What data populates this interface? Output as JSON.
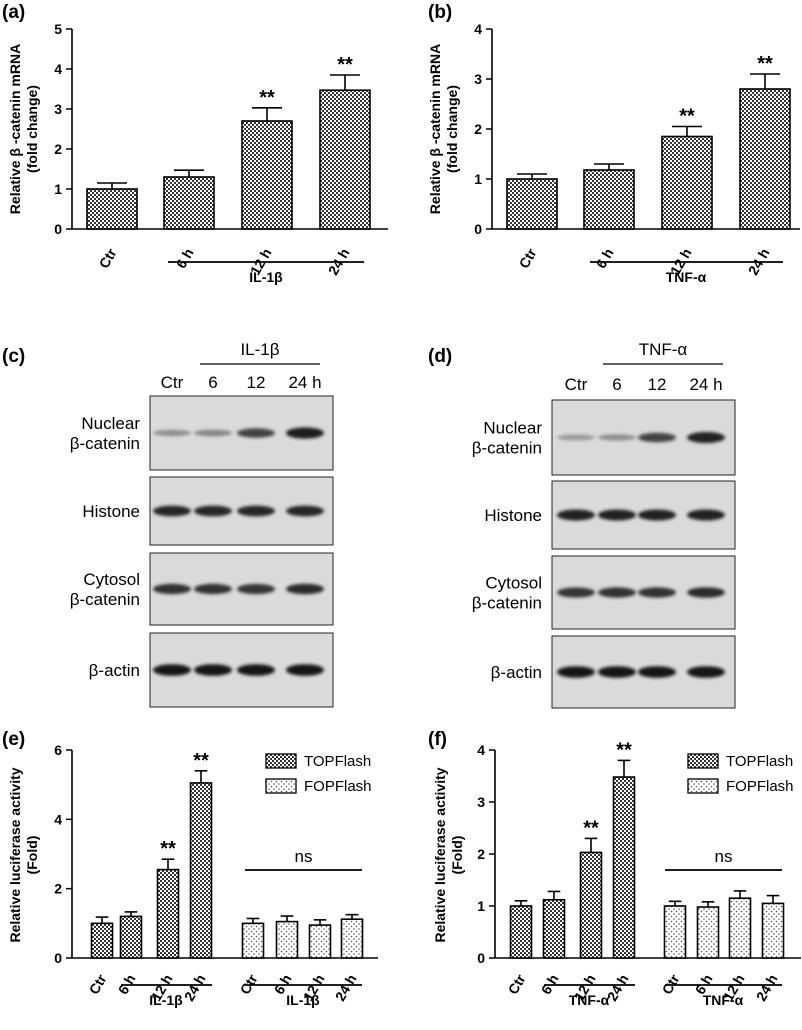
{
  "panels": {
    "a": "(a)",
    "b": "(b)",
    "c": "(c)",
    "d": "(d)",
    "e": "(e)",
    "f": "(f)"
  },
  "colors": {
    "bar_fill": "#6b6b6b",
    "axis": "#000000",
    "blot_bg": "#d9d9d9",
    "band": "#1a1a1a"
  },
  "chart_data": [
    {
      "id": "a",
      "type": "bar",
      "categories": [
        "Ctr",
        "6 h",
        "12 h",
        "24 h"
      ],
      "values": [
        1.0,
        1.3,
        2.7,
        3.47
      ],
      "errors": [
        0.15,
        0.17,
        0.33,
        0.38
      ],
      "significance": [
        "",
        "",
        "**",
        "**"
      ],
      "ylabel": "Relative β -catenin mRNA (fold change)",
      "ylim": [
        0,
        5
      ],
      "yticks": [
        0,
        1,
        2,
        3,
        4,
        5
      ],
      "group_label": "IL-1β"
    },
    {
      "id": "b",
      "type": "bar",
      "categories": [
        "Ctr",
        "6 h",
        "12 h",
        "24 h"
      ],
      "values": [
        1.0,
        1.18,
        1.85,
        2.8
      ],
      "errors": [
        0.1,
        0.12,
        0.2,
        0.3
      ],
      "significance": [
        "",
        "",
        "**",
        "**"
      ],
      "ylabel": "Relative β -catenin mRNA (fold change)",
      "ylim": [
        0,
        4
      ],
      "yticks": [
        0,
        1,
        2,
        3,
        4
      ],
      "group_label": "TNF-α"
    },
    {
      "id": "e",
      "type": "bar",
      "categories": [
        "Ctr",
        "6 h",
        "12 h",
        "24 h"
      ],
      "series": [
        {
          "name": "TOPFlash",
          "values": [
            1.0,
            1.2,
            2.55,
            5.05
          ],
          "errors": [
            0.18,
            0.13,
            0.3,
            0.35
          ],
          "significance": [
            "",
            "",
            "**",
            "**"
          ]
        },
        {
          "name": "FOPFlash",
          "values": [
            1.0,
            1.05,
            0.95,
            1.12
          ],
          "errors": [
            0.14,
            0.16,
            0.15,
            0.13
          ],
          "significance": [
            "",
            "",
            "",
            ""
          ]
        }
      ],
      "ylabel": "Relative luciferase activity (Fold)",
      "ylim": [
        0,
        6
      ],
      "yticks": [
        0,
        2,
        4,
        6
      ],
      "group_labels": [
        "IL-1β",
        "IL-1β"
      ],
      "ns_label": "ns",
      "legend": "top-right"
    },
    {
      "id": "f",
      "type": "bar",
      "categories": [
        "Ctr",
        "6 h",
        "12 h",
        "24 h"
      ],
      "series": [
        {
          "name": "TOPFlash",
          "values": [
            1.0,
            1.12,
            2.03,
            3.48
          ],
          "errors": [
            0.1,
            0.16,
            0.27,
            0.32
          ],
          "significance": [
            "",
            "",
            "**",
            "**"
          ]
        },
        {
          "name": "FOPFlash",
          "values": [
            1.0,
            0.98,
            1.15,
            1.05
          ],
          "errors": [
            0.09,
            0.1,
            0.14,
            0.15
          ],
          "significance": [
            "",
            "",
            "",
            ""
          ]
        }
      ],
      "ylabel": "Relative luciferase activity (Fold)",
      "ylim": [
        0,
        4
      ],
      "yticks": [
        0,
        1,
        2,
        3,
        4
      ],
      "group_labels": [
        "TNF-α",
        "TNF-α"
      ],
      "ns_label": "ns",
      "legend": "top-right"
    }
  ],
  "blots": [
    {
      "id": "c",
      "treatment": "IL-1β",
      "lanes": [
        "Ctr",
        "6",
        "12",
        "24 h"
      ],
      "rows": [
        {
          "label": [
            "Nuclear",
            "β-catenin"
          ],
          "intensity": [
            0.3,
            0.35,
            0.7,
            0.9
          ]
        },
        {
          "label": [
            "Histone"
          ],
          "intensity": [
            0.85,
            0.85,
            0.85,
            0.85
          ]
        },
        {
          "label": [
            "Cytosol",
            "β-catenin"
          ],
          "intensity": [
            0.8,
            0.8,
            0.78,
            0.82
          ]
        },
        {
          "label": [
            "β-actin"
          ],
          "intensity": [
            0.95,
            0.95,
            0.95,
            0.95
          ]
        }
      ]
    },
    {
      "id": "d",
      "treatment": "TNF-α",
      "lanes": [
        "Ctr",
        "6",
        "12",
        "24 h"
      ],
      "rows": [
        {
          "label": [
            "Nuclear",
            "β-catenin"
          ],
          "intensity": [
            0.25,
            0.3,
            0.7,
            0.88
          ]
        },
        {
          "label": [
            "Histone"
          ],
          "intensity": [
            0.88,
            0.88,
            0.88,
            0.88
          ]
        },
        {
          "label": [
            "Cytosol",
            "β-catenin"
          ],
          "intensity": [
            0.78,
            0.8,
            0.8,
            0.82
          ]
        },
        {
          "label": [
            "β-actin"
          ],
          "intensity": [
            0.95,
            0.95,
            0.95,
            0.95
          ]
        }
      ]
    }
  ]
}
